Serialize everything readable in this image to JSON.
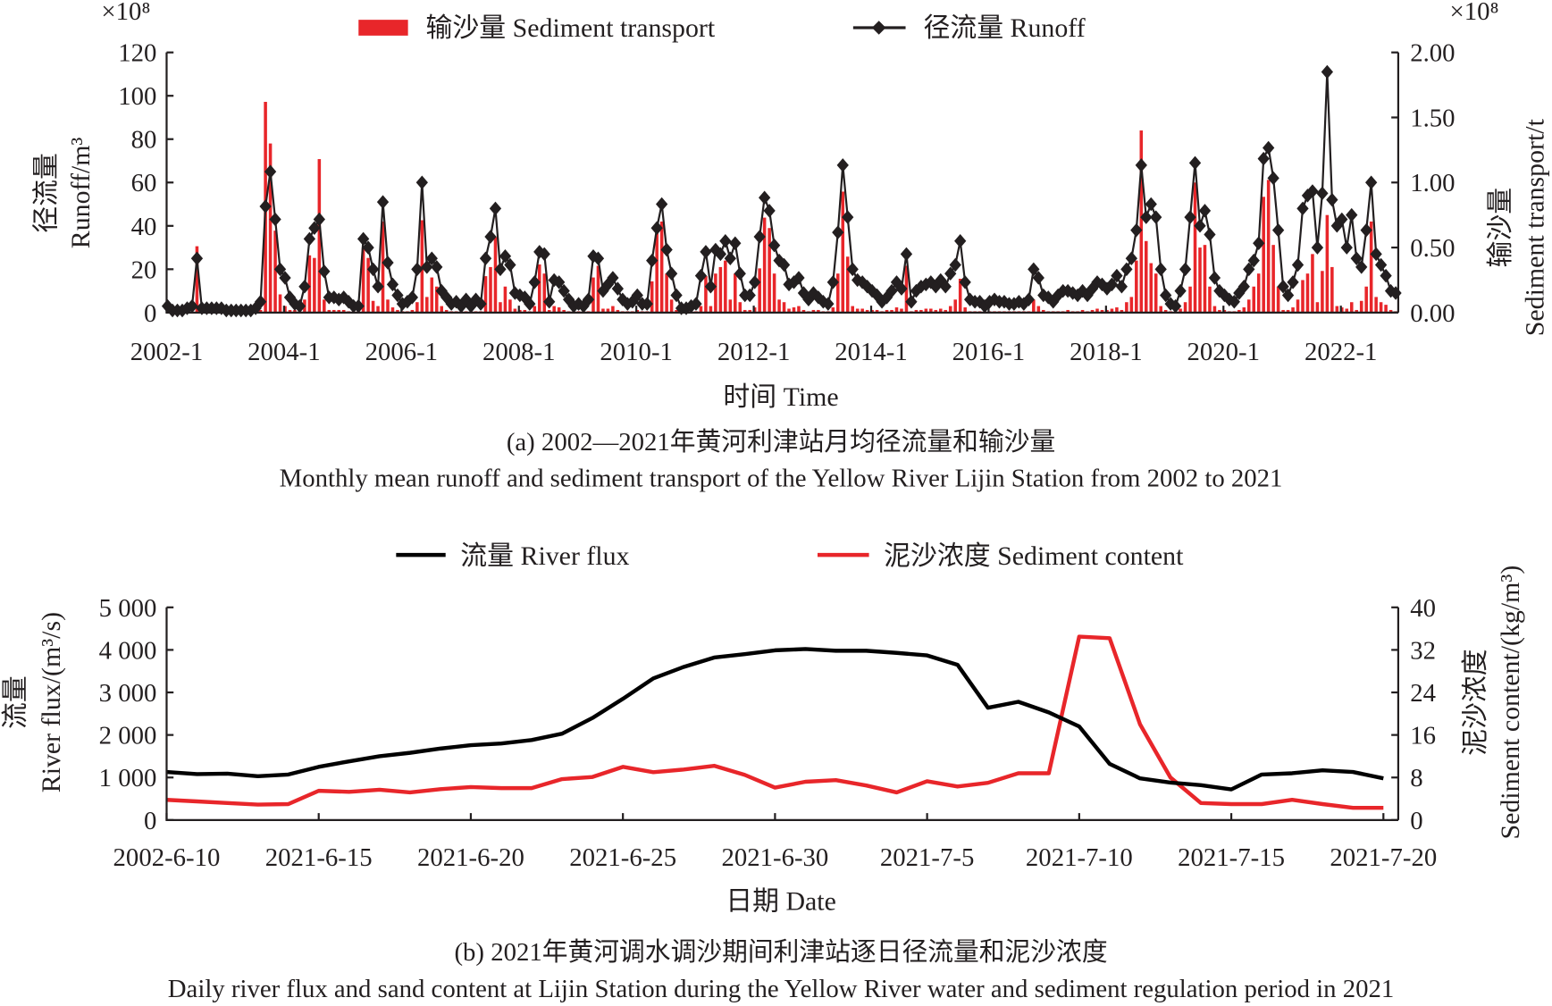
{
  "chart_data": [
    {
      "type": "bar+line",
      "title_cn": "(a) 2002—2021年黄河利津站月均径流量和输沙量",
      "title_en": "Monthly mean runoff and sediment transport of the Yellow River Lijin Station from 2002 to 2021",
      "xlabel": "时间 Time",
      "ylabel_cn": "径流量",
      "ylabel_en": "Runoff/m³",
      "y2label_cn": "输沙量",
      "y2label_en": "Sediment transport/t",
      "y_multiplier": "×10⁸",
      "y2_multiplier": "×10⁸",
      "ylim": [
        0,
        120
      ],
      "y2lim": [
        0,
        2
      ],
      "yticks": [
        "0",
        "20",
        "40",
        "60",
        "80",
        "100",
        "120"
      ],
      "y2ticks": [
        "0.00",
        "0.50",
        "1.00",
        "1.50",
        "2.00"
      ],
      "xticks": [
        "2002-1",
        "2004-1",
        "2006-1",
        "2008-1",
        "2010-1",
        "2012-1",
        "2014-1",
        "2016-1",
        "2018-1",
        "2020-1",
        "2022-1"
      ],
      "start": "2002-1",
      "legend": {
        "sediment": "输沙量 Sediment transport",
        "runoff": "径流量 Runoff",
        "placement": "top"
      },
      "colors": {
        "sediment": "#e8262a",
        "runoff": "#231f20"
      },
      "series": [
        {
          "name": "径流量 Runoff",
          "axis": "left",
          "values": [
            3,
            1,
            1,
            1,
            2,
            3,
            25,
            2,
            2,
            2,
            2,
            2,
            1,
            1,
            1,
            1,
            1,
            1,
            2,
            5,
            49,
            65,
            43,
            20,
            16,
            7,
            4,
            3,
            12,
            34,
            39,
            43,
            19,
            7,
            7,
            6,
            7,
            5,
            3,
            3,
            34,
            30,
            20,
            12,
            51,
            23,
            13,
            8,
            4,
            5,
            7,
            20,
            60,
            21,
            25,
            21,
            10,
            7,
            4,
            5,
            3,
            6,
            3,
            6,
            4,
            25,
            35,
            48,
            20,
            26,
            22,
            9,
            8,
            7,
            4,
            14,
            28,
            27,
            5,
            15,
            14,
            10,
            6,
            3,
            4,
            3,
            6,
            26,
            25,
            10,
            13,
            16,
            11,
            6,
            4,
            5,
            8,
            4,
            4,
            24,
            39,
            50,
            29,
            18,
            8,
            2,
            2,
            3,
            4,
            17,
            28,
            12,
            29,
            27,
            33,
            25,
            32,
            18,
            8,
            8,
            14,
            35,
            53,
            47,
            31,
            24,
            22,
            13,
            14,
            16,
            9,
            6,
            9,
            7,
            5,
            4,
            14,
            37,
            68,
            44,
            20,
            15,
            14,
            12,
            10,
            8,
            5,
            7,
            10,
            14,
            11,
            27,
            5,
            10,
            12,
            13,
            14,
            12,
            15,
            12,
            18,
            22,
            33,
            14,
            6,
            5,
            5,
            3,
            5,
            6,
            5,
            5,
            4,
            4,
            5,
            4,
            6,
            20,
            16,
            8,
            7,
            5,
            8,
            10,
            10,
            9,
            8,
            10,
            8,
            11,
            14,
            13,
            11,
            13,
            17,
            12,
            20,
            25,
            38,
            68,
            44,
            50,
            44,
            20,
            8,
            4,
            3,
            10,
            20,
            44,
            69,
            40,
            47,
            36,
            16,
            10,
            8,
            6,
            5,
            9,
            12,
            20,
            24,
            32,
            71,
            76,
            62,
            38,
            12,
            8,
            14,
            22,
            48,
            54,
            56,
            30,
            55,
            111,
            52,
            40,
            43,
            30,
            45,
            25,
            21,
            38,
            60,
            27,
            22,
            17,
            10,
            9
          ]
        },
        {
          "name": "输沙量 Sediment transport",
          "axis": "right",
          "values": [
            0,
            0,
            0,
            0,
            0,
            0,
            0.51,
            0,
            0,
            0,
            0,
            0,
            0,
            0,
            0,
            0,
            0,
            0,
            0.01,
            0.02,
            1.62,
            1.3,
            0.63,
            0.14,
            0.05,
            0.02,
            0.02,
            0.02,
            0.1,
            0.44,
            0.42,
            1.18,
            0.1,
            0.02,
            0.02,
            0.02,
            0.02,
            0.01,
            0.01,
            0.01,
            0.5,
            0.42,
            0.09,
            0.05,
            0.7,
            0.1,
            0.04,
            0.02,
            0.01,
            0.01,
            0.02,
            0.08,
            0.71,
            0.12,
            0.27,
            0.2,
            0.05,
            0.02,
            0.01,
            0.01,
            0.01,
            0.01,
            0.01,
            0.01,
            0.01,
            0.28,
            0.35,
            0.58,
            0.08,
            0.2,
            0.1,
            0.03,
            0.02,
            0.02,
            0.01,
            0.05,
            0.37,
            0.3,
            0.02,
            0.05,
            0.04,
            0.02,
            0.01,
            0.01,
            0.01,
            0.01,
            0.01,
            0.27,
            0.36,
            0.03,
            0.03,
            0.05,
            0.02,
            0.01,
            0.01,
            0.01,
            0.02,
            0.01,
            0.01,
            0.24,
            0.62,
            0.7,
            0.3,
            0.1,
            0.02,
            0.01,
            0.01,
            0.01,
            0.01,
            0.05,
            0.28,
            0.05,
            0.3,
            0.35,
            0.4,
            0.1,
            0.3,
            0.08,
            0.02,
            0.02,
            0.04,
            0.34,
            0.73,
            0.65,
            0.3,
            0.1,
            0.08,
            0.03,
            0.04,
            0.05,
            0.02,
            0.01,
            0.02,
            0.02,
            0.01,
            0.01,
            0.04,
            0.3,
            0.93,
            0.43,
            0.05,
            0.03,
            0.03,
            0.02,
            0.02,
            0.02,
            0.01,
            0.02,
            0.02,
            0.04,
            0.03,
            0.36,
            0.01,
            0.02,
            0.02,
            0.03,
            0.03,
            0.02,
            0.03,
            0.02,
            0.05,
            0.1,
            0.26,
            0.04,
            0.01,
            0.01,
            0.01,
            0.01,
            0.01,
            0.01,
            0.01,
            0.01,
            0.01,
            0.01,
            0.01,
            0.01,
            0.01,
            0.1,
            0.05,
            0.02,
            0.01,
            0.01,
            0.01,
            0.01,
            0.02,
            0.01,
            0.01,
            0.02,
            0.01,
            0.02,
            0.03,
            0.02,
            0.02,
            0.03,
            0.04,
            0.02,
            0.08,
            0.12,
            0.4,
            1.4,
            0.55,
            0.38,
            0.3,
            0.05,
            0.02,
            0.01,
            0.01,
            0.03,
            0.08,
            0.2,
            1.0,
            0.5,
            0.52,
            0.2,
            0.05,
            0.02,
            0.02,
            0.01,
            0.01,
            0.02,
            0.04,
            0.1,
            0.2,
            0.3,
            0.89,
            1.02,
            0.52,
            0.2,
            0.02,
            0.02,
            0.04,
            0.1,
            0.25,
            0.3,
            0.45,
            0.08,
            0.32,
            0.75,
            0.35,
            0.05,
            0.04,
            0.03,
            0.08,
            0.02,
            0.09,
            0.2,
            0.7,
            0.12,
            0.08,
            0.06,
            0.02,
            0.01
          ]
        }
      ]
    },
    {
      "type": "line",
      "title_cn": "(b) 2021年黄河调水调沙期间利津站逐日径流量和泥沙浓度",
      "title_en": "Daily river flux and sand content at Lijin Station during the Yellow River water and sediment regulation period in 2021",
      "xlabel": "日期 Date",
      "ylabel_cn": "流量",
      "ylabel_en": "River flux/(m³/s)",
      "y2label_cn": "泥沙浓度",
      "y2label_en": "Sediment content/(kg/m³)",
      "ylim": [
        0,
        5000
      ],
      "y2lim": [
        0,
        40
      ],
      "yticks": [
        "0",
        "1 000",
        "2 000",
        "3 000",
        "4 000",
        "5 000"
      ],
      "y2ticks": [
        "0",
        "8",
        "16",
        "24",
        "32",
        "40"
      ],
      "xticks": [
        "2002-6-10",
        "2021-6-15",
        "2021-6-20",
        "2021-6-25",
        "2021-6-30",
        "2021-7-5",
        "2021-7-10",
        "2021-7-15",
        "2021-7-20"
      ],
      "legend": {
        "flux": "流量 River flux",
        "sediment": "泥沙浓度 Sediment content",
        "placement": "top"
      },
      "colors": {
        "flux": "#000000",
        "sediment": "#e8262a"
      },
      "series": [
        {
          "name": "流量 River flux",
          "axis": "left",
          "values": [
            1130,
            1080,
            1090,
            1030,
            1070,
            1250,
            1380,
            1500,
            1580,
            1680,
            1760,
            1800,
            1880,
            2030,
            2400,
            2850,
            3330,
            3600,
            3820,
            3900,
            3990,
            4020,
            3980,
            3980,
            3930,
            3870,
            3650,
            2640,
            2780,
            2530,
            2200,
            1320,
            980,
            880,
            820,
            720,
            1070,
            1100,
            1170,
            1130,
            980
          ]
        },
        {
          "name": "泥沙浓度 Sediment content",
          "axis": "right",
          "values": [
            3.8,
            3.5,
            3.2,
            2.9,
            3.0,
            5.5,
            5.3,
            5.7,
            5.2,
            5.8,
            6.2,
            6.0,
            6.0,
            7.7,
            8.1,
            10.0,
            9.0,
            9.5,
            10.2,
            8.5,
            6.1,
            7.2,
            7.5,
            6.5,
            5.2,
            7.3,
            6.3,
            7.0,
            8.8,
            8.8,
            34.5,
            34.2,
            18.0,
            8.0,
            3.2,
            3.0,
            3.0,
            3.8,
            3.0,
            2.3,
            2.3
          ]
        }
      ]
    }
  ]
}
